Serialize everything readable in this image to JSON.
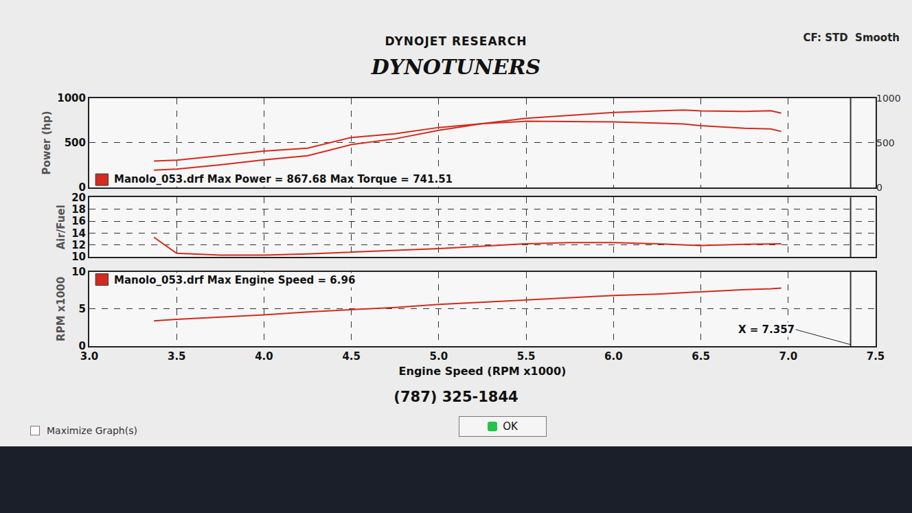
{
  "header": {
    "title": "DYNOJET RESEARCH",
    "subtitle": "DYNOTUNERS",
    "settings": "CF: STD  Smooth"
  },
  "footer": {
    "phone": "(787) 325-1844",
    "button": "OK",
    "checkbox": "Maximize Graph(s)"
  },
  "chart_data": [
    {
      "type": "line",
      "ylabel": "Power (hp)",
      "grid": true,
      "tick_labels": "y",
      "x": [
        3.37,
        3.5,
        3.75,
        4.0,
        4.25,
        4.5,
        4.75,
        5.0,
        5.25,
        5.5,
        5.75,
        6.0,
        6.25,
        6.4,
        6.5,
        6.75,
        6.9,
        6.96
      ],
      "xlim": [
        3.0,
        7.5
      ],
      "xticks": [
        {
          "value": 3.0,
          "label": "3.0"
        },
        {
          "value": 3.5,
          "label": "3.5"
        },
        {
          "value": 4.0,
          "label": "4.0"
        },
        {
          "value": 4.5,
          "label": "4.5"
        },
        {
          "value": 5.0,
          "label": "5.0"
        },
        {
          "value": 5.5,
          "label": "5.5"
        },
        {
          "value": 6.0,
          "label": "6.0"
        },
        {
          "value": 6.5,
          "label": "6.5"
        },
        {
          "value": 7.0,
          "label": "7.0"
        },
        {
          "value": 7.5,
          "label": "7.5"
        }
      ],
      "ylim": [
        0,
        1000
      ],
      "yticks": [
        0,
        500,
        1000
      ],
      "y2lim": [
        0,
        1000
      ],
      "y2ticks": [
        0,
        500,
        1000
      ],
      "series": [
        {
          "color": "#d42a1f",
          "values": [
            194,
            205,
            253,
            310,
            356,
            480,
            545,
            640,
            715,
            775,
            808,
            840,
            858,
            867.7,
            858,
            852,
            860,
            832
          ]
        },
        {
          "color": "#d42a1f",
          "axis": "y2",
          "values": [
            296,
            305,
            355,
            407,
            440,
            560,
            602,
            672,
            715,
            741.5,
            738,
            735,
            721,
            712,
            693,
            663,
            655,
            628
          ]
        }
      ],
      "annotations": [
        {
          "text": "Manolo_053.drf Max Power = 867.68 Max Torque = 741.51"
        }
      ]
    },
    {
      "type": "line",
      "ylabel": "Air/Fuel",
      "grid": true,
      "tick_labels": "y",
      "x": [
        3.37,
        3.5,
        3.75,
        4.0,
        4.25,
        4.5,
        4.75,
        5.0,
        5.25,
        5.5,
        5.75,
        6.0,
        6.25,
        6.4,
        6.5,
        6.75,
        6.9,
        6.96
      ],
      "xlim": [
        3.0,
        7.5
      ],
      "xticks": [
        {
          "value": 3.0,
          "label": "3.0"
        },
        {
          "value": 3.5,
          "label": "3.5"
        },
        {
          "value": 4.0,
          "label": "4.0"
        },
        {
          "value": 4.5,
          "label": "4.5"
        },
        {
          "value": 5.0,
          "label": "5.0"
        },
        {
          "value": 5.5,
          "label": "5.5"
        },
        {
          "value": 6.0,
          "label": "6.0"
        },
        {
          "value": 6.5,
          "label": "6.5"
        },
        {
          "value": 7.0,
          "label": "7.0"
        },
        {
          "value": 7.5,
          "label": "7.5"
        }
      ],
      "ylim": [
        10,
        20
      ],
      "yticks": [
        10,
        12,
        14,
        16,
        18,
        20
      ],
      "series": [
        {
          "color": "#d42a1f",
          "values": [
            13.3,
            10.6,
            10.3,
            10.3,
            10.5,
            10.8,
            11.1,
            11.4,
            11.8,
            12.2,
            12.4,
            12.4,
            12.2,
            12.0,
            11.9,
            12.1,
            12.2,
            12.2
          ]
        }
      ]
    },
    {
      "type": "line",
      "ylabel": "RPM x1000",
      "xlabel": "Engine Speed (RPM x1000)",
      "grid": true,
      "x": [
        3.37,
        3.5,
        3.75,
        4.0,
        4.25,
        4.5,
        4.75,
        5.0,
        5.25,
        5.5,
        5.75,
        6.0,
        6.25,
        6.4,
        6.5,
        6.75,
        6.9,
        6.96
      ],
      "xlim": [
        3.0,
        7.5
      ],
      "xticks": [
        {
          "value": 3.0,
          "label": "3.0"
        },
        {
          "value": 3.5,
          "label": "3.5"
        },
        {
          "value": 4.0,
          "label": "4.0"
        },
        {
          "value": 4.5,
          "label": "4.5"
        },
        {
          "value": 5.0,
          "label": "5.0"
        },
        {
          "value": 5.5,
          "label": "5.5"
        },
        {
          "value": 6.0,
          "label": "6.0"
        },
        {
          "value": 6.5,
          "label": "6.5"
        },
        {
          "value": 7.0,
          "label": "7.0"
        },
        {
          "value": 7.5,
          "label": "7.5"
        }
      ],
      "ylim": [
        0,
        10
      ],
      "yticks": [
        0,
        5,
        10
      ],
      "series": [
        {
          "color": "#d42a1f",
          "values": [
            3.4,
            3.6,
            3.9,
            4.2,
            4.6,
            4.9,
            5.2,
            5.6,
            5.9,
            6.2,
            6.5,
            6.8,
            7.0,
            7.2,
            7.3,
            7.6,
            7.7,
            7.8
          ]
        }
      ],
      "annotations": [
        {
          "text": "Manolo_053.drf Max Engine Speed = 6.96"
        },
        {
          "text": "X = 7.357",
          "x": 7.357
        }
      ]
    }
  ]
}
